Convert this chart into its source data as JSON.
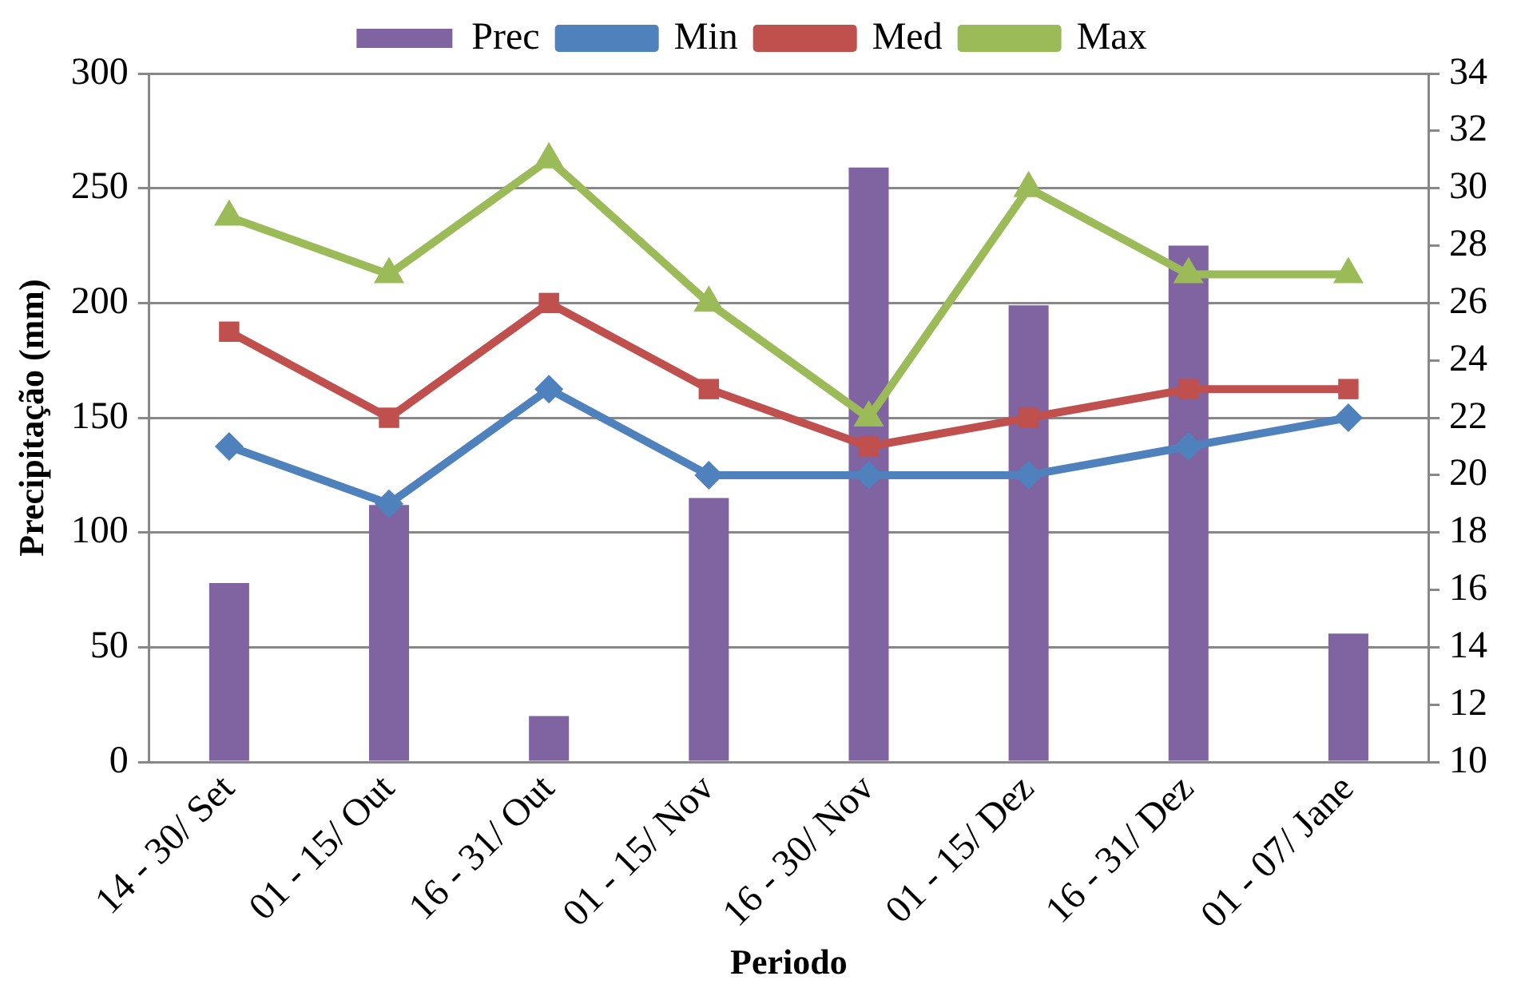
{
  "chart_data": {
    "type": "bar",
    "xlabel": "Periodo",
    "ylabel": "Precipitação (mm)",
    "categories": [
      "14 - 30/ Set",
      "01 - 15/ Out",
      "16 - 31/ Out",
      "01 - 15/ Nov",
      "16 - 30/ Nov",
      "01 - 15/ Dez",
      "16 - 31/ Dez",
      "01 - 07/ Jane"
    ],
    "series": [
      {
        "name": "Prec",
        "color": "#8064a2",
        "values": [
          78,
          112,
          20,
          115,
          259,
          199,
          225,
          56
        ]
      },
      {
        "name": "Min",
        "type": "line",
        "axis": "y2",
        "marker": "diamond",
        "color": "#4f81bd",
        "values": [
          21,
          19,
          23,
          20,
          20,
          20,
          21,
          22
        ]
      },
      {
        "name": "Med",
        "type": "line",
        "axis": "y2",
        "marker": "square",
        "color": "#c0504d",
        "values": [
          25,
          22,
          26,
          23,
          21,
          22,
          23,
          23
        ]
      },
      {
        "name": "Max",
        "type": "line",
        "axis": "y2",
        "marker": "triangle",
        "color": "#9bbb59",
        "values": [
          29,
          27,
          31,
          26,
          22,
          30,
          27,
          27
        ]
      }
    ],
    "ylim": [
      0,
      300
    ],
    "yticks": [
      0,
      50,
      100,
      150,
      200,
      250,
      300
    ],
    "y2lim": [
      10,
      34
    ],
    "y2ticks": [
      10,
      12,
      14,
      16,
      18,
      20,
      22,
      24,
      26,
      28,
      30,
      32,
      34
    ],
    "grid": "y",
    "legend": "top"
  }
}
